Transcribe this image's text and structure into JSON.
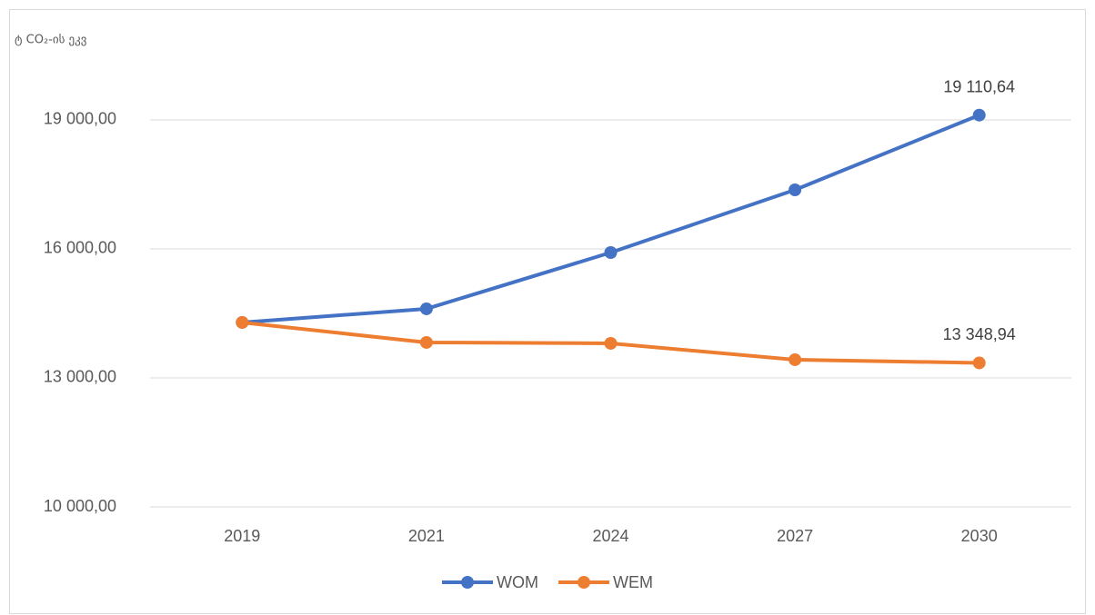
{
  "chart_data": {
    "type": "line",
    "y_label": "ტ CO₂-ის ეკვ",
    "categories": [
      "2019",
      "2021",
      "2024",
      "2027",
      "2030"
    ],
    "series": [
      {
        "name": "WOM",
        "color": "#4472c4",
        "values": [
          14289,
          14606,
          15915,
          17373,
          19110.64
        ],
        "value_labels": [
          null,
          null,
          null,
          null,
          "19 110,64"
        ]
      },
      {
        "name": "WEM",
        "color": "#ed7d31",
        "values": [
          14289,
          13824,
          13803,
          13423,
          13348.94
        ],
        "value_labels": [
          null,
          null,
          null,
          null,
          "13 348,94"
        ]
      }
    ],
    "ylim": [
      10000,
      21000
    ],
    "yticks": [
      {
        "value": 10000,
        "label": "10 000,00"
      },
      {
        "value": 13000,
        "label": "13 000,00"
      },
      {
        "value": 16000,
        "label": "16 000,00"
      },
      {
        "value": 19000,
        "label": "19 000,00"
      }
    ],
    "grid": true,
    "legend": "bottom"
  }
}
